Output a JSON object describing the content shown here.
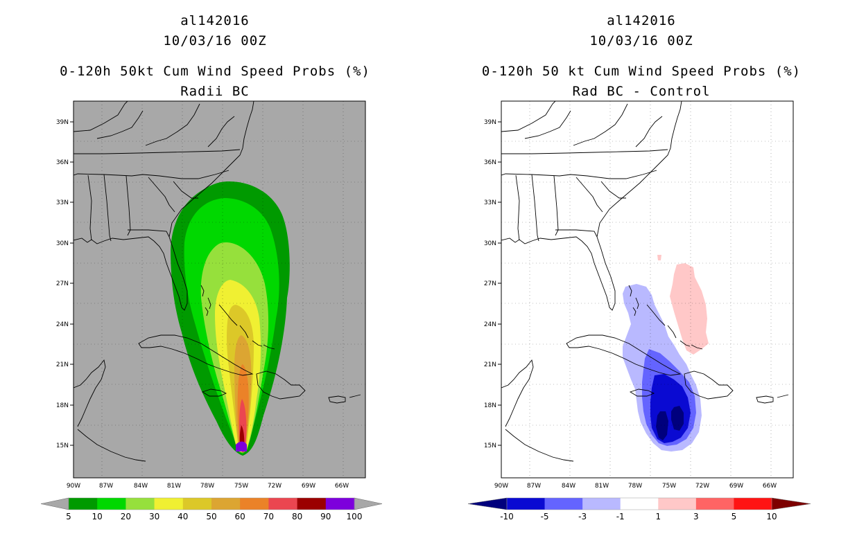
{
  "left": {
    "storm_id": "al142016",
    "datetime": "10/03/16 00Z",
    "title": "0-120h 50kt Cum Wind Speed Probs (%)",
    "subtitle": "Radii BC",
    "lat_labels": [
      "39N",
      "36N",
      "33N",
      "30N",
      "27N",
      "24N",
      "21N",
      "18N",
      "15N"
    ],
    "lon_labels": [
      "90W",
      "87W",
      "84W",
      "81W",
      "78W",
      "75W",
      "72W",
      "69W",
      "66W"
    ],
    "colorbar": {
      "labels": [
        "5",
        "10",
        "20",
        "30",
        "40",
        "50",
        "60",
        "70",
        "80",
        "90",
        "100"
      ],
      "colors": [
        "#009a00",
        "#00d800",
        "#96e03c",
        "#f0f032",
        "#dcc828",
        "#dca532",
        "#eb8228",
        "#eb4650",
        "#9b0000",
        "#7d00dc"
      ],
      "end_low": "#a8a8a8",
      "end_high": "#a8a8a8"
    }
  },
  "right": {
    "storm_id": "al142016",
    "datetime": "10/03/16 00Z",
    "title": "0-120h 50 kt Cum Wind Speed Probs (%)",
    "subtitle": "Rad BC - Control",
    "lat_labels": [
      "39N",
      "36N",
      "33N",
      "30N",
      "27N",
      "24N",
      "21N",
      "18N",
      "15N"
    ],
    "lon_labels": [
      "90W",
      "87W",
      "84W",
      "81W",
      "78W",
      "75W",
      "72W",
      "69W",
      "66W"
    ],
    "colorbar": {
      "labels": [
        "-10",
        "-5",
        "-3",
        "-1",
        "1",
        "3",
        "5",
        "10"
      ],
      "colors": [
        "#0a0ad2",
        "#6464ff",
        "#b9b9ff",
        "#ffffff",
        "#ffc8c8",
        "#ff6464",
        "#ff1414"
      ],
      "end_low": "#00007d",
      "end_high": "#7d0000"
    }
  }
}
